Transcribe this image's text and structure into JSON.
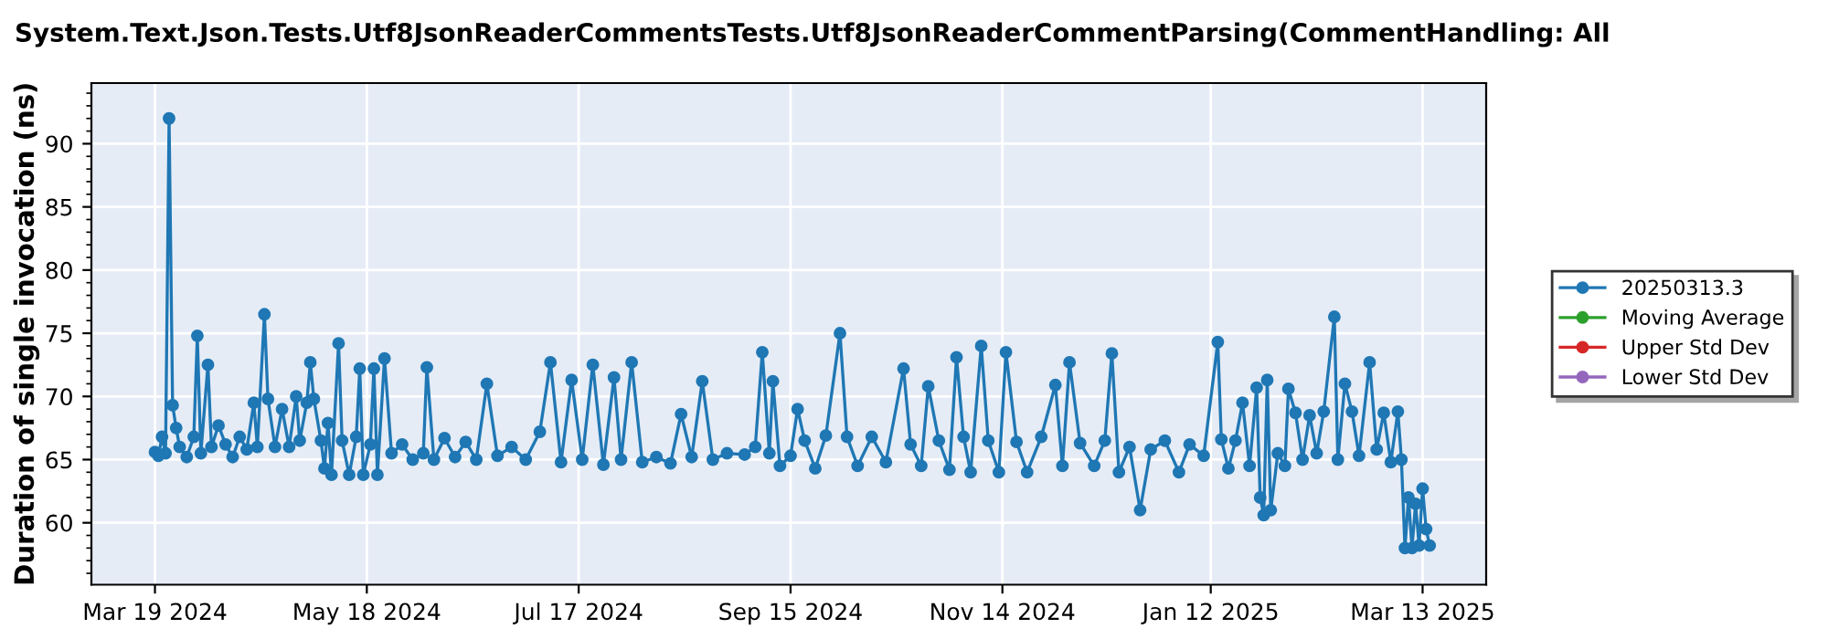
{
  "chart_data": {
    "type": "line",
    "title": "System.Text.Json.Tests.Utf8JsonReaderCommentsTests.Utf8JsonReaderCommentParsing(CommentHandling: All",
    "ylabel": "Duration of single invocation (ns)",
    "x": [
      "2024-03-19",
      "2024-03-20",
      "2024-03-21",
      "2024-03-22",
      "2024-03-23",
      "2024-03-24",
      "2024-03-25",
      "2024-03-26",
      "2024-03-28",
      "2024-03-30",
      "2024-03-31",
      "2024-04-01",
      "2024-04-03",
      "2024-04-04",
      "2024-04-06",
      "2024-04-08",
      "2024-04-10",
      "2024-04-12",
      "2024-04-14",
      "2024-04-16",
      "2024-04-17",
      "2024-04-19",
      "2024-04-20",
      "2024-04-22",
      "2024-04-24",
      "2024-04-26",
      "2024-04-28",
      "2024-04-29",
      "2024-05-01",
      "2024-05-02",
      "2024-05-03",
      "2024-05-05",
      "2024-05-06",
      "2024-05-07",
      "2024-05-08",
      "2024-05-10",
      "2024-05-11",
      "2024-05-13",
      "2024-05-15",
      "2024-05-16",
      "2024-05-17",
      "2024-05-19",
      "2024-05-20",
      "2024-05-21",
      "2024-05-23",
      "2024-05-25",
      "2024-05-28",
      "2024-05-31",
      "2024-06-03",
      "2024-06-04",
      "2024-06-06",
      "2024-06-09",
      "2024-06-12",
      "2024-06-15",
      "2024-06-18",
      "2024-06-21",
      "2024-06-24",
      "2024-06-28",
      "2024-07-02",
      "2024-07-06",
      "2024-07-09",
      "2024-07-12",
      "2024-07-15",
      "2024-07-18",
      "2024-07-21",
      "2024-07-24",
      "2024-07-27",
      "2024-07-29",
      "2024-08-01",
      "2024-08-04",
      "2024-08-08",
      "2024-08-12",
      "2024-08-15",
      "2024-08-18",
      "2024-08-21",
      "2024-08-24",
      "2024-08-28",
      "2024-09-02",
      "2024-09-05",
      "2024-09-07",
      "2024-09-09",
      "2024-09-10",
      "2024-09-12",
      "2024-09-15",
      "2024-09-17",
      "2024-09-19",
      "2024-09-22",
      "2024-09-25",
      "2024-09-29",
      "2024-10-01",
      "2024-10-04",
      "2024-10-08",
      "2024-10-12",
      "2024-10-17",
      "2024-10-19",
      "2024-10-22",
      "2024-10-24",
      "2024-10-27",
      "2024-10-30",
      "2024-11-01",
      "2024-11-03",
      "2024-11-05",
      "2024-11-08",
      "2024-11-10",
      "2024-11-13",
      "2024-11-15",
      "2024-11-18",
      "2024-11-21",
      "2024-11-25",
      "2024-11-29",
      "2024-12-01",
      "2024-12-03",
      "2024-12-06",
      "2024-12-10",
      "2024-12-13",
      "2024-12-15",
      "2024-12-17",
      "2024-12-20",
      "2024-12-23",
      "2024-12-26",
      "2024-12-30",
      "2025-01-03",
      "2025-01-06",
      "2025-01-10",
      "2025-01-14",
      "2025-01-15",
      "2025-01-17",
      "2025-01-19",
      "2025-01-21",
      "2025-01-23",
      "2025-01-25",
      "2025-01-26",
      "2025-01-27",
      "2025-01-28",
      "2025-01-29",
      "2025-01-31",
      "2025-02-02",
      "2025-02-03",
      "2025-02-05",
      "2025-02-07",
      "2025-02-09",
      "2025-02-11",
      "2025-02-13",
      "2025-02-16",
      "2025-02-17",
      "2025-02-19",
      "2025-02-21",
      "2025-02-23",
      "2025-02-26",
      "2025-02-28",
      "2025-03-02",
      "2025-03-04",
      "2025-03-06",
      "2025-03-07",
      "2025-03-08",
      "2025-03-09",
      "2025-03-10",
      "2025-03-11",
      "2025-03-12",
      "2025-03-13",
      "2025-03-14",
      "2025-03-15"
    ],
    "series": [
      {
        "name": "20250313.3",
        "color": "#1f77b4",
        "values": [
          65.6,
          65.3,
          66.8,
          65.5,
          92.0,
          69.3,
          67.5,
          66.0,
          65.2,
          66.8,
          74.8,
          65.5,
          72.5,
          66.0,
          67.7,
          66.2,
          65.2,
          66.8,
          65.8,
          69.5,
          66.0,
          76.5,
          69.8,
          66.0,
          69.0,
          66.0,
          70.0,
          66.5,
          69.5,
          72.7,
          69.8,
          66.5,
          64.3,
          67.9,
          63.8,
          74.2,
          66.5,
          63.8,
          66.8,
          72.2,
          63.8,
          66.2,
          72.2,
          63.8,
          73.0,
          65.5,
          66.2,
          65.0,
          65.5,
          72.3,
          65.0,
          66.7,
          65.2,
          66.4,
          65.0,
          71.0,
          65.3,
          66.0,
          65.0,
          67.2,
          72.7,
          64.8,
          71.3,
          65.0,
          72.5,
          64.6,
          71.5,
          65.0,
          72.7,
          64.8,
          65.2,
          64.7,
          68.6,
          65.2,
          71.2,
          65.0,
          65.5,
          65.4,
          66.0,
          73.5,
          65.5,
          71.2,
          64.5,
          65.3,
          69.0,
          66.5,
          64.3,
          66.9,
          75.0,
          66.8,
          64.5,
          66.8,
          64.8,
          72.2,
          66.2,
          64.5,
          70.8,
          66.5,
          64.2,
          73.1,
          66.8,
          64.0,
          74.0,
          66.5,
          64.0,
          73.5,
          66.4,
          64.0,
          66.8,
          70.9,
          64.5,
          72.7,
          66.3,
          64.5,
          66.5,
          73.4,
          64.0,
          66.0,
          61.0,
          65.8,
          66.5,
          64.0,
          66.2,
          65.3,
          74.3,
          66.6,
          64.3,
          66.5,
          69.5,
          64.5,
          70.7,
          62.0,
          60.6,
          71.3,
          61.0,
          65.5,
          64.5,
          70.6,
          68.7,
          65.0,
          68.5,
          65.5,
          68.8,
          76.3,
          65.0,
          71.0,
          68.8,
          65.3,
          72.7,
          65.8,
          68.7,
          64.8,
          68.8,
          65.0,
          58.0,
          62.0,
          58.0,
          61.5,
          58.2,
          62.7,
          59.5,
          58.2
        ]
      },
      {
        "name": "Moving Average",
        "color": "#2ca02c",
        "values": [
          null,
          null,
          null,
          null,
          null,
          null,
          null,
          null,
          null,
          null,
          null,
          null,
          null,
          null,
          null,
          null,
          null,
          null,
          null,
          null,
          null,
          null,
          null,
          null,
          null,
          null,
          null,
          null,
          null,
          null,
          null,
          null,
          null,
          null,
          null,
          null,
          null,
          null,
          null,
          null,
          null,
          null,
          null,
          null,
          null,
          null,
          null,
          null,
          null,
          null,
          null,
          null,
          null,
          null,
          null,
          null,
          null,
          null,
          null,
          null,
          null,
          null,
          null,
          null,
          null,
          null,
          null,
          null,
          null,
          null,
          null,
          null,
          null,
          null,
          null,
          null,
          null,
          null,
          null,
          null,
          null,
          null,
          null,
          null,
          null,
          null,
          null,
          null,
          null,
          null,
          null,
          null,
          null,
          null,
          null,
          null,
          null,
          null,
          null,
          null,
          null,
          null,
          null,
          null,
          null,
          null,
          null,
          null,
          null,
          null,
          null,
          null,
          null,
          null,
          null,
          null,
          null,
          null,
          null,
          null,
          null,
          null,
          null,
          null,
          null,
          null,
          null,
          null,
          null,
          null,
          null,
          null,
          null,
          null,
          null,
          null,
          null,
          null,
          null,
          null,
          null,
          null,
          null,
          null,
          null,
          null,
          null,
          null,
          null,
          null,
          null,
          null,
          null,
          null,
          null,
          null,
          null,
          null,
          null,
          null,
          null,
          null
        ]
      },
      {
        "name": "Upper Std Dev",
        "color": "#d62728",
        "values": [
          null,
          null,
          null,
          null,
          null,
          null,
          null,
          null,
          null,
          null,
          null,
          null,
          null,
          null,
          null,
          null,
          null,
          null,
          null,
          null,
          null,
          null,
          null,
          null,
          null,
          null,
          null,
          null,
          null,
          null,
          null,
          null,
          null,
          null,
          null,
          null,
          null,
          null,
          null,
          null,
          null,
          null,
          null,
          null,
          null,
          null,
          null,
          null,
          null,
          null,
          null,
          null,
          null,
          null,
          null,
          null,
          null,
          null,
          null,
          null,
          null,
          null,
          null,
          null,
          null,
          null,
          null,
          null,
          null,
          null,
          null,
          null,
          null,
          null,
          null,
          null,
          null,
          null,
          null,
          null,
          null,
          null,
          null,
          null,
          null,
          null,
          null,
          null,
          null,
          null,
          null,
          null,
          null,
          null,
          null,
          null,
          null,
          null,
          null,
          null,
          null,
          null,
          null,
          null,
          null,
          null,
          null,
          null,
          null,
          null,
          null,
          null,
          null,
          null,
          null,
          null,
          null,
          null,
          null,
          null,
          null,
          null,
          null,
          null,
          null,
          null,
          null,
          null,
          null,
          null,
          null,
          null,
          null,
          null,
          null,
          null,
          null,
          null,
          null,
          null,
          null,
          null,
          null,
          null,
          null,
          null,
          null,
          null,
          null,
          null,
          null,
          null,
          null,
          null,
          null,
          null,
          null,
          null,
          null,
          null,
          null,
          null
        ]
      },
      {
        "name": "Lower Std Dev",
        "color": "#9467bd",
        "values": [
          null,
          null,
          null,
          null,
          null,
          null,
          null,
          null,
          null,
          null,
          null,
          null,
          null,
          null,
          null,
          null,
          null,
          null,
          null,
          null,
          null,
          null,
          null,
          null,
          null,
          null,
          null,
          null,
          null,
          null,
          null,
          null,
          null,
          null,
          null,
          null,
          null,
          null,
          null,
          null,
          null,
          null,
          null,
          null,
          null,
          null,
          null,
          null,
          null,
          null,
          null,
          null,
          null,
          null,
          null,
          null,
          null,
          null,
          null,
          null,
          null,
          null,
          null,
          null,
          null,
          null,
          null,
          null,
          null,
          null,
          null,
          null,
          null,
          null,
          null,
          null,
          null,
          null,
          null,
          null,
          null,
          null,
          null,
          null,
          null,
          null,
          null,
          null,
          null,
          null,
          null,
          null,
          null,
          null,
          null,
          null,
          null,
          null,
          null,
          null,
          null,
          null,
          null,
          null,
          null,
          null,
          null,
          null,
          null,
          null,
          null,
          null,
          null,
          null,
          null,
          null,
          null,
          null,
          null,
          null,
          null,
          null,
          null,
          null,
          null,
          null,
          null,
          null,
          null,
          null,
          null,
          null,
          null,
          null,
          null,
          null,
          null,
          null,
          null,
          null,
          null,
          null,
          null,
          null,
          null,
          null,
          null,
          null,
          null,
          null,
          null,
          null,
          null,
          null,
          null,
          null,
          null,
          null,
          null,
          null,
          null,
          null
        ]
      }
    ],
    "xlim": [
      "2024-03-01",
      "2025-03-31"
    ],
    "xticks": [
      {
        "value": "2024-03-19",
        "label": "Mar 19 2024"
      },
      {
        "value": "2024-05-18",
        "label": "May 18 2024"
      },
      {
        "value": "2024-07-17",
        "label": "Jul 17 2024"
      },
      {
        "value": "2024-09-15",
        "label": "Sep 15 2024"
      },
      {
        "value": "2024-11-14",
        "label": "Nov 14 2024"
      },
      {
        "value": "2025-01-12",
        "label": "Jan 12 2025"
      },
      {
        "value": "2025-03-13",
        "label": "Mar 13 2025"
      }
    ],
    "ylim": [
      55.1,
      94.8
    ],
    "yticks": [
      60,
      65,
      70,
      75,
      80,
      85,
      90
    ],
    "grid": true,
    "legend": "right",
    "marker": "circle",
    "line_style": "solid"
  }
}
